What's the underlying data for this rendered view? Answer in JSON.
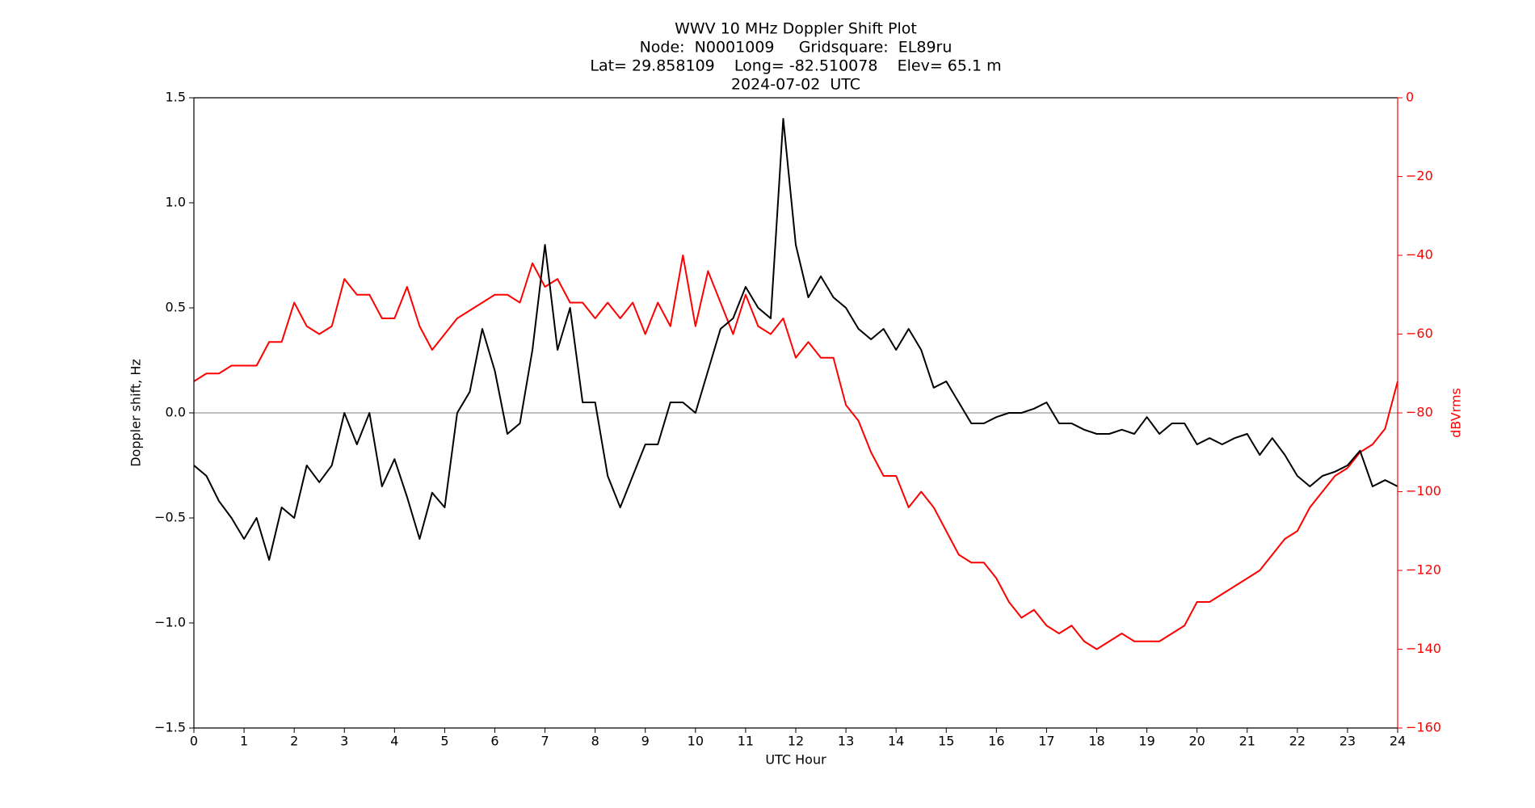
{
  "chart_data": {
    "type": "line",
    "title": [
      "WWV 10 MHz Doppler Shift Plot",
      "Node:  N0001009     Gridsquare:  EL89ru",
      "Lat= 29.858109    Long= -82.510078    Elev= 65.1 m",
      "2024-07-02  UTC"
    ],
    "xlabel": "UTC Hour",
    "ylabel": "Doppler shift, Hz",
    "y2label": "dBVrms",
    "x": [
      0,
      0.25,
      0.5,
      0.75,
      1,
      1.25,
      1.5,
      1.75,
      2,
      2.25,
      2.5,
      2.75,
      3,
      3.25,
      3.5,
      3.75,
      4,
      4.25,
      4.5,
      4.75,
      5,
      5.25,
      5.5,
      5.75,
      6,
      6.25,
      6.5,
      6.75,
      7,
      7.25,
      7.5,
      7.75,
      8,
      8.25,
      8.5,
      8.75,
      9,
      9.25,
      9.5,
      9.75,
      10,
      10.25,
      10.5,
      10.75,
      11,
      11.25,
      11.5,
      11.75,
      12,
      12.25,
      12.5,
      12.75,
      13,
      13.25,
      13.5,
      13.75,
      14,
      14.25,
      14.5,
      14.75,
      15,
      15.25,
      15.5,
      15.75,
      16,
      16.25,
      16.5,
      16.75,
      17,
      17.25,
      17.5,
      17.75,
      18,
      18.25,
      18.5,
      18.75,
      19,
      19.25,
      19.5,
      19.75,
      20,
      20.25,
      20.5,
      20.75,
      21,
      21.25,
      21.5,
      21.75,
      22,
      22.25,
      22.5,
      22.75,
      23,
      23.25,
      23.5,
      23.75,
      24
    ],
    "series": [
      {
        "name": "Doppler shift",
        "color": "#000000",
        "values": [
          -0.25,
          -0.3,
          -0.42,
          -0.5,
          -0.6,
          -0.5,
          -0.7,
          -0.45,
          -0.5,
          -0.25,
          -0.33,
          -0.25,
          0.0,
          -0.15,
          0.0,
          -0.35,
          -0.22,
          -0.4,
          -0.6,
          -0.38,
          -0.45,
          0.0,
          0.1,
          0.4,
          0.2,
          -0.1,
          -0.05,
          0.3,
          0.8,
          0.3,
          0.5,
          0.05,
          0.05,
          -0.3,
          -0.45,
          -0.3,
          -0.15,
          -0.15,
          0.05,
          0.05,
          0.0,
          0.2,
          0.4,
          0.45,
          0.6,
          0.5,
          0.45,
          1.4,
          0.8,
          0.55,
          0.65,
          0.55,
          0.5,
          0.4,
          0.35,
          0.4,
          0.3,
          0.4,
          0.3,
          0.12,
          0.15,
          0.05,
          -0.05,
          -0.05,
          -0.02,
          0.0,
          0.0,
          0.02,
          0.05,
          -0.05,
          -0.05,
          -0.08,
          -0.1,
          -0.1,
          -0.08,
          -0.1,
          -0.02,
          -0.1,
          -0.05,
          -0.05,
          -0.15,
          -0.12,
          -0.15,
          -0.12,
          -0.1,
          -0.2,
          -0.12,
          -0.2,
          -0.3,
          -0.35,
          -0.3,
          -0.28,
          -0.25,
          -0.18,
          -0.35,
          -0.32,
          -0.35
        ]
      },
      {
        "name": "dBVrms",
        "color": "#ff0000",
        "axis": "y2",
        "values": [
          -72,
          -70,
          -70,
          -68,
          -68,
          -68,
          -62,
          -62,
          -52,
          -58,
          -60,
          -58,
          -46,
          -50,
          -50,
          -56,
          -56,
          -48,
          -58,
          -64,
          -60,
          -56,
          -54,
          -52,
          -50,
          -50,
          -52,
          -42,
          -48,
          -46,
          -52,
          -52,
          -56,
          -52,
          -56,
          -52,
          -60,
          -52,
          -58,
          -40,
          -58,
          -44,
          -52,
          -60,
          -50,
          -58,
          -60,
          -56,
          -66,
          -62,
          -66,
          -66,
          -78,
          -82,
          -90,
          -96,
          -96,
          -104,
          -100,
          -104,
          -110,
          -116,
          -118,
          -118,
          -122,
          -128,
          -132,
          -130,
          -134,
          -136,
          -134,
          -138,
          -140,
          -138,
          -136,
          -138,
          -138,
          -138,
          -136,
          -134,
          -128,
          -128,
          -126,
          -124,
          -122,
          -120,
          -116,
          -112,
          -110,
          -104,
          -100,
          -96,
          -94,
          -90,
          -88,
          -84,
          -72
        ]
      }
    ],
    "xlim": [
      0,
      24
    ],
    "xticks": [
      0,
      1,
      2,
      3,
      4,
      5,
      6,
      7,
      8,
      9,
      10,
      11,
      12,
      13,
      14,
      15,
      16,
      17,
      18,
      19,
      20,
      21,
      22,
      23,
      24
    ],
    "ylim": [
      -1.5,
      1.5
    ],
    "yticks": [
      {
        "value": -1.5,
        "label": "−1.5"
      },
      {
        "value": -1.0,
        "label": "−1.0"
      },
      {
        "value": -0.5,
        "label": "−0.5"
      },
      {
        "value": 0,
        "label": "0.0"
      },
      0.5,
      {
        "value": 1.0,
        "label": "1.0"
      },
      1.5
    ],
    "y2lim": [
      -160,
      0
    ],
    "y2ticks": [
      {
        "value": -160,
        "label": "−160"
      },
      {
        "value": -140,
        "label": "−140"
      },
      {
        "value": -120,
        "label": "−120"
      },
      {
        "value": -100,
        "label": "−100"
      },
      {
        "value": -80,
        "label": "−80"
      },
      {
        "value": -60,
        "label": "−60"
      },
      {
        "value": -40,
        "label": "−40"
      },
      {
        "value": -20,
        "label": "−20"
      },
      0
    ],
    "y2color": "#ff0000",
    "hlines": [
      0
    ]
  }
}
